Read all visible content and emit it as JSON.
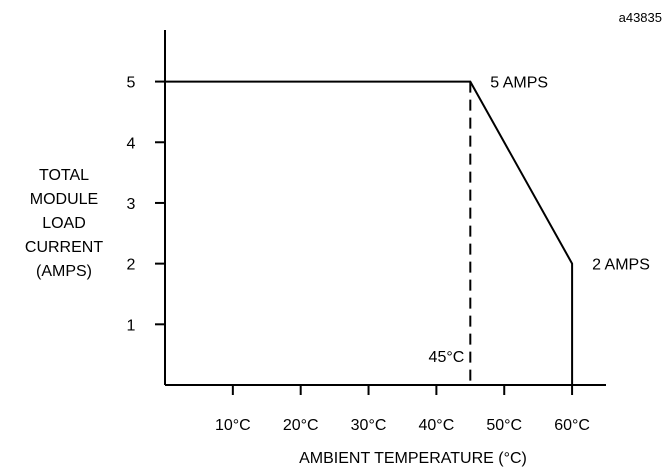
{
  "figure_id": "a43835",
  "chart_data": {
    "type": "line",
    "title": "",
    "xlabel": "AMBIENT TEMPERATURE (°C)",
    "ylabel_lines": [
      "TOTAL",
      "MODULE",
      "LOAD",
      "CURRENT",
      "(AMPS)"
    ],
    "xlim": [
      0,
      65
    ],
    "ylim": [
      0,
      5.85
    ],
    "x_ticks": [
      10,
      20,
      30,
      40,
      50,
      60
    ],
    "x_tick_labels": [
      "10°C",
      "20°C",
      "30°C",
      "40°C",
      "50°C",
      "60°C"
    ],
    "y_ticks": [
      1,
      2,
      3,
      4,
      5
    ],
    "y_tick_labels": [
      "1",
      "2",
      "3",
      "4",
      "5"
    ],
    "grid": false,
    "series": [
      {
        "x": [
          0,
          45,
          60,
          60
        ],
        "y": [
          5,
          5,
          2,
          0
        ]
      }
    ],
    "reference_line": {
      "x": 45,
      "label": "45°C",
      "style": "dashed"
    },
    "annotations": [
      {
        "x": 45,
        "y": 5,
        "text": "5 AMPS"
      },
      {
        "x": 60,
        "y": 2,
        "text": "2 AMPS"
      }
    ]
  }
}
